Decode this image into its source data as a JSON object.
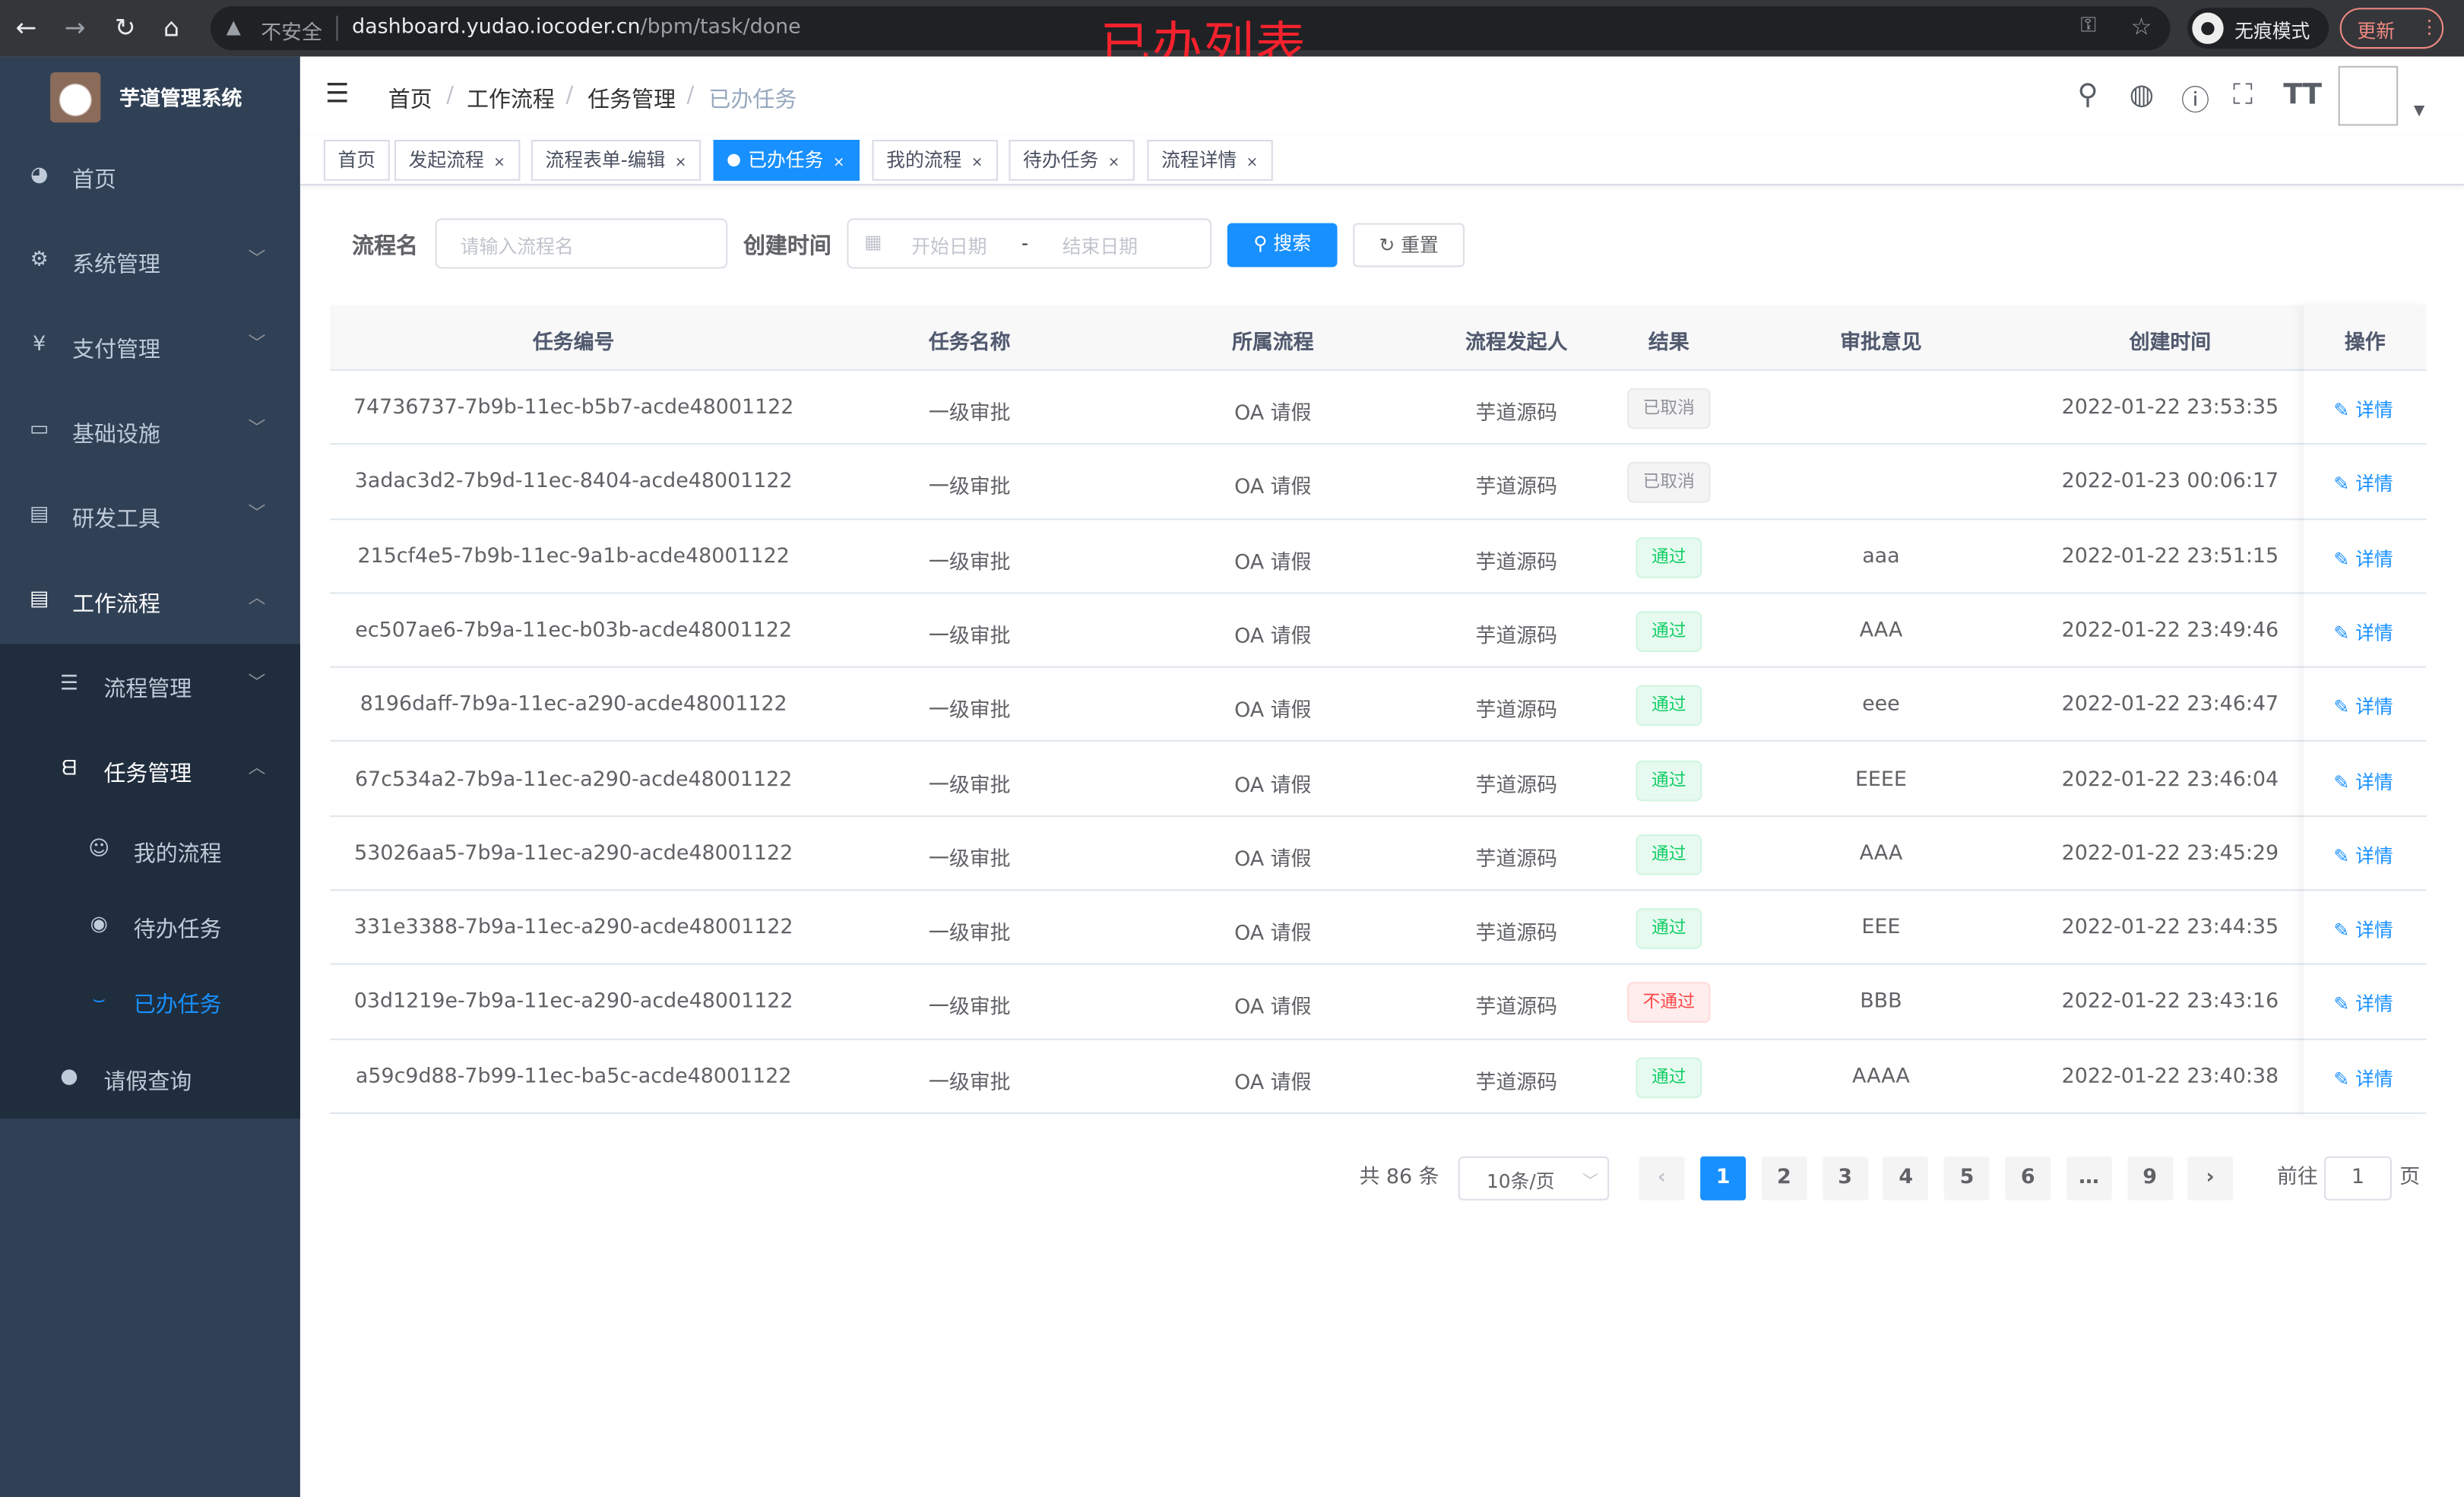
{
  "browser": {
    "insecure_label": "不安全",
    "url_host": "dashboard.yudao.iocoder.cn",
    "url_path": "/bpm/task/done",
    "incognito_label": "无痕模式",
    "update_label": "更新"
  },
  "annotation": "已办列表",
  "sidebar": {
    "brand": "芋道管理系统",
    "items": [
      {
        "label": "首页",
        "icon": "dashboard-icon"
      },
      {
        "label": "系统管理",
        "icon": "gear-icon"
      },
      {
        "label": "支付管理",
        "icon": "yen-icon"
      },
      {
        "label": "基础设施",
        "icon": "monitor-icon"
      },
      {
        "label": "研发工具",
        "icon": "toolbox-icon"
      },
      {
        "label": "工作流程",
        "icon": "briefcase-icon"
      },
      {
        "label": "流程管理",
        "icon": "list-icon"
      },
      {
        "label": "任务管理",
        "icon": "tree-icon"
      },
      {
        "label": "我的流程",
        "icon": "robot-icon"
      },
      {
        "label": "待办任务",
        "icon": "eye-icon"
      },
      {
        "label": "已办任务",
        "icon": "eye-closed-icon"
      },
      {
        "label": "请假查询",
        "icon": "user-icon"
      }
    ]
  },
  "breadcrumb": [
    "首页",
    "工作流程",
    "任务管理",
    "已办任务"
  ],
  "tags": [
    "首页",
    "发起流程",
    "流程表单-编辑",
    "已办任务",
    "我的流程",
    "待办任务",
    "流程详情"
  ],
  "search": {
    "name_label": "流程名",
    "name_placeholder": "请输入流程名",
    "time_label": "创建时间",
    "start_placeholder": "开始日期",
    "range_sep": "-",
    "end_placeholder": "结束日期",
    "search_label": "搜索",
    "reset_label": "重置"
  },
  "colors": {
    "primary": "#1890ff",
    "sidebar": "#304156",
    "success": "#13ce66",
    "danger": "#ff4949"
  },
  "table": {
    "columns": [
      "任务编号",
      "任务名称",
      "所属流程",
      "流程发起人",
      "结果",
      "审批意见",
      "创建时间",
      "操作"
    ],
    "rows": [
      {
        "id": "74736737-7b9b-11ec-b5b7-acde48001122",
        "name": "一级审批",
        "flow": "OA 请假",
        "initiator": "芋道源码",
        "result": "已取消",
        "status": "gray",
        "comment": "",
        "time": "2022-01-22 23:53:35"
      },
      {
        "id": "3adac3d2-7b9d-11ec-8404-acde48001122",
        "name": "一级审批",
        "flow": "OA 请假",
        "initiator": "芋道源码",
        "result": "已取消",
        "status": "gray",
        "comment": "",
        "time": "2022-01-23 00:06:17"
      },
      {
        "id": "215cf4e5-7b9b-11ec-9a1b-acde48001122",
        "name": "一级审批",
        "flow": "OA 请假",
        "initiator": "芋道源码",
        "result": "通过",
        "status": "green",
        "comment": "aaa",
        "time": "2022-01-22 23:51:15"
      },
      {
        "id": "ec507ae6-7b9a-11ec-b03b-acde48001122",
        "name": "一级审批",
        "flow": "OA 请假",
        "initiator": "芋道源码",
        "result": "通过",
        "status": "green",
        "comment": "AAA",
        "time": "2022-01-22 23:49:46"
      },
      {
        "id": "8196daff-7b9a-11ec-a290-acde48001122",
        "name": "一级审批",
        "flow": "OA 请假",
        "initiator": "芋道源码",
        "result": "通过",
        "status": "green",
        "comment": "eee",
        "time": "2022-01-22 23:46:47"
      },
      {
        "id": "67c534a2-7b9a-11ec-a290-acde48001122",
        "name": "一级审批",
        "flow": "OA 请假",
        "initiator": "芋道源码",
        "result": "通过",
        "status": "green",
        "comment": "EEEE",
        "time": "2022-01-22 23:46:04"
      },
      {
        "id": "53026aa5-7b9a-11ec-a290-acde48001122",
        "name": "一级审批",
        "flow": "OA 请假",
        "initiator": "芋道源码",
        "result": "通过",
        "status": "green",
        "comment": "AAA",
        "time": "2022-01-22 23:45:29"
      },
      {
        "id": "331e3388-7b9a-11ec-a290-acde48001122",
        "name": "一级审批",
        "flow": "OA 请假",
        "initiator": "芋道源码",
        "result": "通过",
        "status": "green",
        "comment": "EEE",
        "time": "2022-01-22 23:44:35"
      },
      {
        "id": "03d1219e-7b9a-11ec-a290-acde48001122",
        "name": "一级审批",
        "flow": "OA 请假",
        "initiator": "芋道源码",
        "result": "不通过",
        "status": "red",
        "comment": "BBB",
        "time": "2022-01-22 23:43:16"
      },
      {
        "id": "a59c9d88-7b99-11ec-ba5c-acde48001122",
        "name": "一级审批",
        "flow": "OA 请假",
        "initiator": "芋道源码",
        "result": "通过",
        "status": "green",
        "comment": "AAAA",
        "time": "2022-01-22 23:40:38"
      }
    ],
    "action_label": "详情"
  },
  "pagination": {
    "total_label": "共 86 条",
    "page_size": "10条/页",
    "pages": [
      "1",
      "2",
      "3",
      "4",
      "5",
      "6",
      "…",
      "9"
    ],
    "current": 1,
    "goto_label": "前往",
    "goto_value": "1",
    "page_suffix": "页"
  }
}
